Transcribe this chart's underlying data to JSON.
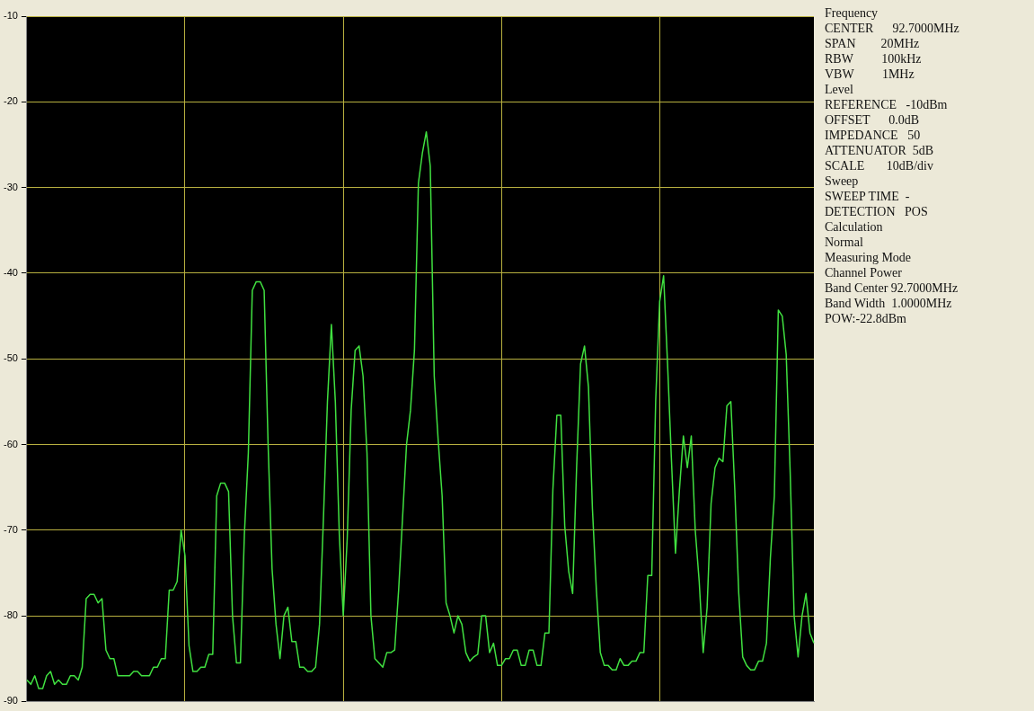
{
  "chart_data": {
    "type": "line",
    "categories": [
      null,
      null,
      null,
      null,
      null,
      null,
      null,
      null,
      null,
      null,
      null,
      null,
      null,
      null,
      null,
      null,
      null,
      null,
      null,
      null,
      null,
      null,
      null,
      null,
      null,
      null,
      null,
      null,
      null,
      null,
      null,
      null,
      null,
      null,
      null,
      null,
      null,
      null,
      null,
      null,
      null,
      null,
      null,
      null,
      null,
      null,
      null,
      null,
      null,
      null,
      null,
      null,
      null,
      null,
      null,
      null,
      null,
      null,
      null,
      null,
      null,
      null,
      null,
      null,
      null,
      null,
      null,
      null,
      null,
      null,
      null,
      null,
      null,
      null,
      null,
      null,
      null,
      null,
      null,
      null,
      null,
      null,
      null,
      null,
      null,
      null,
      null,
      null,
      null,
      null,
      null,
      null,
      null,
      null,
      null,
      null,
      null,
      null,
      null,
      null,
      null,
      null,
      null,
      null,
      null,
      null,
      null,
      null,
      null,
      null,
      null,
      null,
      null,
      null,
      null,
      null,
      null,
      null,
      null,
      null,
      null,
      null,
      null,
      null,
      null,
      null,
      null,
      null,
      null,
      null,
      null,
      null,
      null,
      null,
      null,
      null,
      null,
      null,
      null,
      null,
      null,
      null,
      null,
      null,
      null,
      null,
      null,
      null,
      null,
      null,
      null,
      null,
      null,
      null,
      null,
      null,
      null,
      null,
      null,
      null,
      null,
      null,
      null,
      null,
      null,
      null,
      null,
      null,
      null,
      null,
      null,
      null,
      null,
      null,
      null,
      null,
      null,
      null,
      null,
      null,
      null,
      null,
      null,
      null,
      null,
      null,
      null,
      null,
      null,
      null,
      null,
      null,
      null,
      null,
      null,
      null,
      null,
      null,
      null,
      null
    ],
    "series": [
      {
        "color": "#40e040",
        "values": [
          -87.5,
          -88,
          -87,
          -88.5,
          -88.5,
          -87,
          -86.5,
          -88,
          -87.5,
          -88,
          -88,
          -87,
          -87,
          -87.5,
          -86,
          -78,
          -77.5,
          -77.5,
          -78.5,
          -78,
          -84,
          -85,
          -85,
          -87,
          -87,
          -87,
          -87,
          -86.5,
          -86.5,
          -87,
          -87,
          -87,
          -86,
          -86,
          -85,
          -85,
          -77,
          -77,
          -76,
          -70,
          -73,
          -83.5,
          -86.5,
          -86.5,
          -86,
          -86,
          -84.5,
          -84.5,
          -66,
          -64.5,
          -64.5,
          -65.5,
          -80,
          -85.5,
          -85.5,
          -70.5,
          -61,
          -42,
          -41,
          -41,
          -42,
          -60,
          -74.5,
          -81,
          -85,
          -80,
          -79,
          -83,
          -83,
          -86,
          -86,
          -86.5,
          -86.5,
          -86,
          -81,
          -68.5,
          -55,
          -46,
          -55,
          -70.5,
          -80,
          -71,
          -56,
          -49,
          -48.5,
          -52,
          -61,
          -80,
          -85,
          -85.5,
          -86,
          -84.3,
          -84.3,
          -84,
          -77,
          -68.5,
          -60,
          -56,
          -49,
          -29.5,
          -26,
          -23.5,
          -27.5,
          -52,
          -59.5,
          -66,
          -78.5,
          -80,
          -82,
          -80,
          -81,
          -84.3,
          -85.3,
          -84.8,
          -84.5,
          -80,
          -80,
          -84.3,
          -83.2,
          -85.8,
          -85.8,
          -85,
          -85,
          -84,
          -84,
          -85.8,
          -85.8,
          -84,
          -84,
          -85.8,
          -85.8,
          -82,
          -82,
          -65.3,
          -56.6,
          -56.6,
          -69.5,
          -74.8,
          -77.4,
          -62.7,
          -50.6,
          -48.5,
          -53.3,
          -67.5,
          -77,
          -84.3,
          -85.8,
          -85.8,
          -86.3,
          -86.3,
          -85,
          -85.8,
          -85.8,
          -85.3,
          -85.3,
          -84.3,
          -84.3,
          -75.3,
          -75.3,
          -54.8,
          -43.3,
          -40.3,
          -50.6,
          -62,
          -72.7,
          -65.3,
          -59,
          -62.7,
          -59,
          -70,
          -76,
          -84.3,
          -79,
          -66.9,
          -62.7,
          -61.6,
          -62,
          -55.5,
          -55,
          -65.3,
          -77.4,
          -84.8,
          -85.8,
          -86.3,
          -86.3,
          -85.3,
          -85.3,
          -83.2,
          -73.2,
          -66,
          -44.3,
          -45,
          -49.5,
          -63.2,
          -80,
          -84.8,
          -80,
          -77.4,
          -82,
          -83.2
        ]
      }
    ],
    "ylim": [
      -90,
      -10
    ],
    "yticks": [
      -90,
      -80,
      -70,
      -60,
      -50,
      -40,
      -30,
      -20,
      -10
    ],
    "tick_labels": "y",
    "grid": true,
    "legend": false,
    "marker": "none",
    "annotations": [
      "Frequency",
      "CENTER      92.7000MHz",
      "SPAN        20MHz",
      "RBW         100kHz",
      "VBW         1MHz",
      "Level",
      "REFERENCE   -10dBm",
      "OFFSET      0.0dB",
      "IMPEDANCE   50",
      "ATTENUATOR  5dB",
      "SCALE       10dB/div",
      "Sweep",
      "SWEEP TIME  -",
      "DETECTION   POS",
      "Calculation",
      "Normal",
      "Measuring Mode",
      "Channel Power",
      "Band Center 92.7000MHz",
      "Band Width  1.0000MHz",
      "POW:-22.8dBm"
    ]
  }
}
